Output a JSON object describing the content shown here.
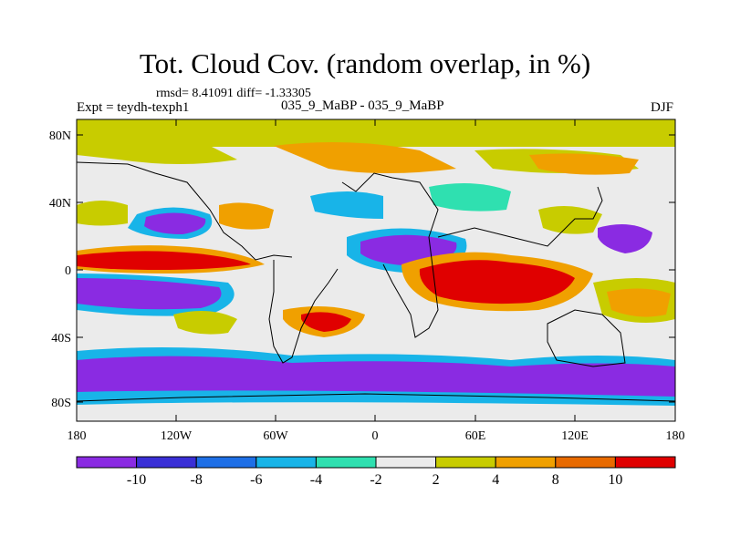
{
  "title": "Tot. Cloud Cov. (random overlap, in %)",
  "stats": "rmsd= 8.41091 diff= -1.33305",
  "experiment": "Expt = teydh-texph1",
  "runs": "035_9_MaBP - 035_9_MaBP",
  "season": "DJF",
  "axes": {
    "lat_ticks": [
      "80N",
      "40N",
      "0",
      "40S",
      "80S"
    ],
    "lon_ticks": [
      "180",
      "120W",
      "60W",
      "0",
      "60E",
      "120E",
      "180"
    ]
  },
  "colorbar": {
    "labels": [
      "-10",
      "-8",
      "-6",
      "-4",
      "-2",
      "2",
      "4",
      "8",
      "10"
    ],
    "colors": [
      "#8a2be2",
      "#3a2fd6",
      "#1e6fe6",
      "#18b4e8",
      "#2fe0b0",
      "#ebebeb",
      "#c8cc00",
      "#f0a000",
      "#e86a00",
      "#e00000"
    ]
  }
}
